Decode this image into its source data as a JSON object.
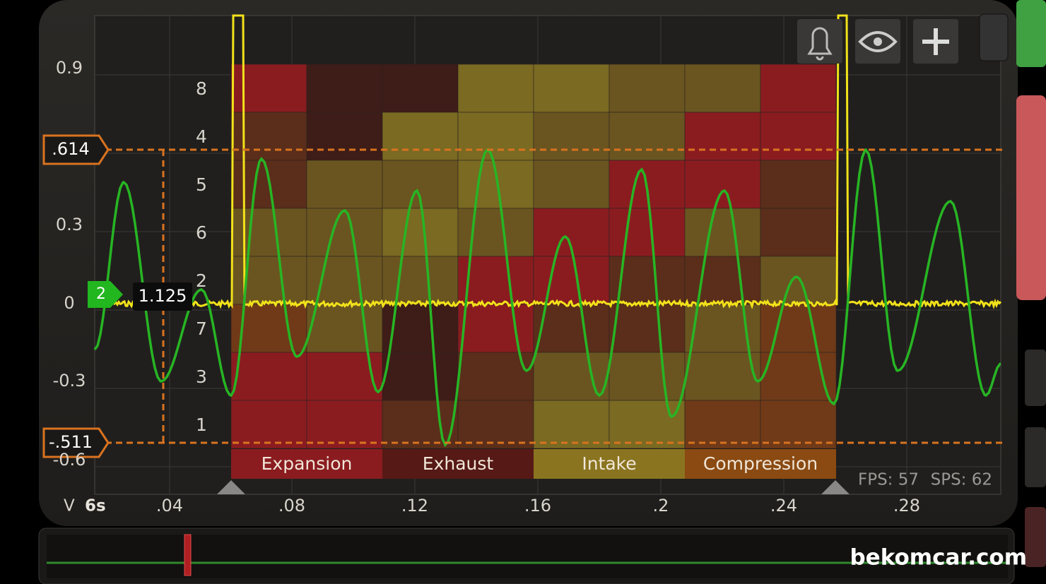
{
  "y_axis_labels": [
    "0.9",
    "0.3",
    "0",
    "-0.3",
    "-0.6"
  ],
  "x_axis_labels": [
    ".04",
    ".08",
    ".12",
    ".16",
    ".2",
    ".24",
    ".28"
  ],
  "axis_unit": "V",
  "timebase": "6s",
  "cursors": {
    "upper": ".614",
    "lower": "-.511"
  },
  "channel_marker": "2",
  "readout": "1.125",
  "cylinder_labels": [
    "8",
    "4",
    "5",
    "6",
    "2",
    "7",
    "3",
    "1"
  ],
  "phases": [
    "Expansion",
    "Exhaust",
    "Intake",
    "Compression"
  ],
  "stats": {
    "fps": "FPS: 57",
    "sps": "SPS: 62"
  },
  "watermark": "bekomcar.com"
}
